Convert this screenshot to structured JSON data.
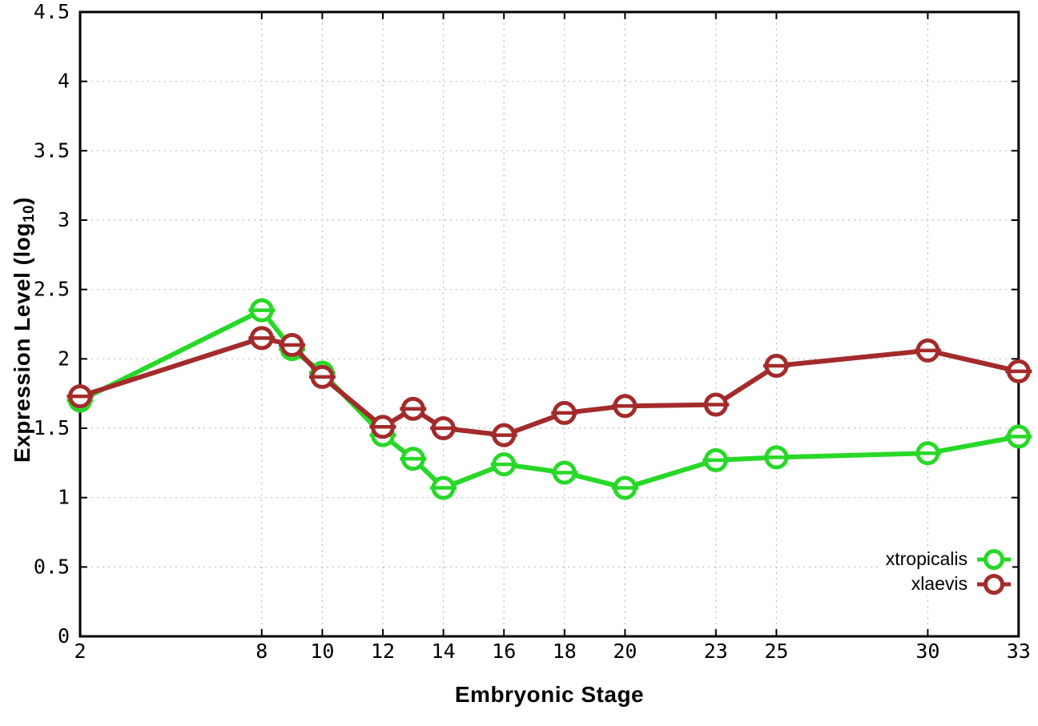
{
  "chart_data": {
    "type": "line",
    "title": "",
    "xlabel": "Embryonic Stage",
    "ylabel_parts": {
      "pre": "Expression Level (log",
      "sub": "10",
      "post": ")"
    },
    "xlim": [
      2,
      33
    ],
    "ylim": [
      0,
      4.5
    ],
    "x_ticks": [
      2,
      8,
      10,
      12,
      14,
      16,
      18,
      20,
      23,
      25,
      30,
      33
    ],
    "x_tick_labels": [
      "2",
      "8",
      "10",
      "12",
      "14",
      "16",
      "18",
      "20",
      "23",
      "25",
      "30",
      "33"
    ],
    "y_ticks": [
      0,
      0.5,
      1,
      1.5,
      2,
      2.5,
      3,
      3.5,
      4,
      4.5
    ],
    "y_tick_labels": [
      "0",
      "0.5",
      "1",
      "1.5",
      "2",
      "2.5",
      "3",
      "3.5",
      "4",
      "4.5"
    ],
    "grid": true,
    "legend_position": "bottom-right",
    "x": [
      2,
      8,
      9,
      10,
      12,
      13,
      14,
      16,
      18,
      20,
      23,
      25,
      30,
      33
    ],
    "series": [
      {
        "name": "xtropicalis",
        "color": "#28d828",
        "values": [
          1.7,
          2.35,
          2.07,
          1.9,
          1.45,
          1.28,
          1.07,
          1.24,
          1.18,
          1.07,
          1.27,
          1.29,
          1.32,
          1.44
        ]
      },
      {
        "name": "xlaevis",
        "color": "#a32b2b",
        "values": [
          1.73,
          2.15,
          2.1,
          1.87,
          1.51,
          1.64,
          1.5,
          1.45,
          1.61,
          1.66,
          1.67,
          1.95,
          2.06,
          1.91
        ]
      }
    ],
    "colors": {
      "axis": "#000000",
      "grid": "#bcbcbc",
      "background": "#ffffff",
      "marker_fill": "#ffffff"
    }
  }
}
